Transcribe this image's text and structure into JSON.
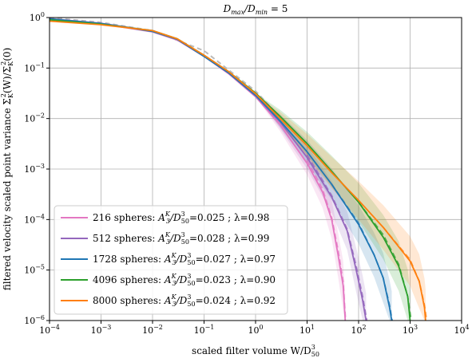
{
  "chart_data": {
    "type": "line",
    "title": {
      "base": "D",
      "sub1": "max",
      "mid": "/D",
      "sub2": "min",
      "tail": " = 5"
    },
    "xlabel": {
      "base": "scaled filter volume W/D",
      "sup": "3",
      "sub": "50"
    },
    "ylabel": {
      "pre": "filtered velocity scaled point variance Σ",
      "sub": "K",
      "sup": "2",
      "mid": "(W)/Σ",
      "sub2": "K",
      "sup2": "2",
      "tail": "(0)"
    },
    "x_scale": "log",
    "y_scale": "log",
    "xlim": [
      0.0001,
      10000
    ],
    "ylim": [
      1e-06,
      1
    ],
    "x_ticks": [
      {
        "value": 0.0001,
        "base": "10",
        "exp": "−4"
      },
      {
        "value": 0.001,
        "base": "10",
        "exp": "−3"
      },
      {
        "value": 0.01,
        "base": "10",
        "exp": "−2"
      },
      {
        "value": 0.1,
        "base": "10",
        "exp": "−1"
      },
      {
        "value": 1,
        "base": "10",
        "exp": "0"
      },
      {
        "value": 10,
        "base": "10",
        "exp": "1"
      },
      {
        "value": 100,
        "base": "10",
        "exp": "2"
      },
      {
        "value": 1000,
        "base": "10",
        "exp": "3"
      },
      {
        "value": 10000,
        "base": "10",
        "exp": "4"
      }
    ],
    "y_ticks": [
      {
        "value": 1e-06,
        "base": "10",
        "exp": "−6"
      },
      {
        "value": 1e-05,
        "base": "10",
        "exp": "−5"
      },
      {
        "value": 0.0001,
        "base": "10",
        "exp": "−4"
      },
      {
        "value": 0.001,
        "base": "10",
        "exp": "−3"
      },
      {
        "value": 0.01,
        "base": "10",
        "exp": "−2"
      },
      {
        "value": 0.1,
        "base": "10",
        "exp": "−1"
      },
      {
        "value": 1,
        "base": "10",
        "exp": "0"
      }
    ],
    "grid": true,
    "legend_position": "bottom-left",
    "reference_curve": {
      "color": "#bbbbbb",
      "x": [
        0.0001,
        0.001,
        0.01,
        0.1,
        1,
        10
      ],
      "y": [
        1.0,
        0.8,
        0.55,
        0.22,
        0.035,
        0.003
      ]
    },
    "series": [
      {
        "name": "216 spheres:",
        "label_tail": "=0.025 ; λ=0.98",
        "color": "#e377c2",
        "x": [
          0.0001,
          0.001,
          0.01,
          0.03,
          0.1,
          0.3,
          1,
          3,
          10,
          20,
          30,
          40,
          50,
          55
        ],
        "y": [
          0.93,
          0.75,
          0.52,
          0.36,
          0.17,
          0.077,
          0.027,
          0.0075,
          0.0013,
          0.00035,
          0.0001,
          2e-05,
          5e-06,
          1e-06
        ],
        "fit_x": [
          10,
          20,
          30,
          40,
          50,
          56
        ],
        "fit_y": [
          0.0015,
          0.0004,
          0.00011,
          2.5e-05,
          6e-06,
          1e-06
        ]
      },
      {
        "name": "512 spheres:",
        "label_tail": "=0.028 ; λ=0.99",
        "color": "#9467bd",
        "x": [
          0.0001,
          0.001,
          0.01,
          0.03,
          0.1,
          0.3,
          1,
          3,
          10,
          30,
          60,
          90,
          120,
          140
        ],
        "y": [
          0.95,
          0.77,
          0.54,
          0.37,
          0.17,
          0.08,
          0.028,
          0.0085,
          0.0017,
          0.00028,
          6e-05,
          1e-05,
          2.5e-06,
          1e-06
        ],
        "fit_x": [
          10,
          30,
          60,
          90,
          120,
          145
        ],
        "fit_y": [
          0.0019,
          0.0003,
          6.5e-05,
          1.2e-05,
          3e-06,
          1e-06
        ]
      },
      {
        "name": "1728 spheres:",
        "label_tail": "=0.027 ; λ=0.97",
        "color": "#1f77b4",
        "x": [
          0.0001,
          0.001,
          0.01,
          0.03,
          0.1,
          0.3,
          1,
          3,
          10,
          30,
          100,
          200,
          300,
          400,
          440
        ],
        "y": [
          0.94,
          0.76,
          0.53,
          0.37,
          0.17,
          0.08,
          0.029,
          0.009,
          0.0022,
          0.0005,
          8e-05,
          2e-05,
          7e-06,
          1.8e-06,
          1e-06
        ],
        "fit_x": [
          30,
          100,
          200,
          300,
          400,
          450
        ],
        "fit_y": [
          0.0005,
          8.5e-05,
          2e-05,
          7e-06,
          2e-06,
          1e-06
        ]
      },
      {
        "name": "4096 spheres:",
        "label_tail": "=0.023 ; λ=0.90",
        "color": "#2ca02c",
        "x": [
          0.0001,
          0.001,
          0.01,
          0.03,
          0.1,
          0.3,
          1,
          3,
          10,
          30,
          100,
          300,
          600,
          900,
          1000
        ],
        "y": [
          0.9,
          0.74,
          0.55,
          0.38,
          0.18,
          0.085,
          0.032,
          0.011,
          0.0032,
          0.0009,
          0.00022,
          4.5e-05,
          1.2e-05,
          3e-06,
          1e-06
        ],
        "fit_x": [
          100,
          300,
          600,
          900,
          1050
        ],
        "fit_y": [
          0.00022,
          5e-05,
          1.3e-05,
          3e-06,
          1e-06
        ]
      },
      {
        "name": "8000 spheres:",
        "label_tail": "=0.024 ; λ=0.92",
        "color": "#ff7f0e",
        "x": [
          0.0001,
          0.001,
          0.01,
          0.03,
          0.1,
          0.3,
          1,
          3,
          10,
          30,
          100,
          300,
          1000,
          1500,
          1900,
          2000
        ],
        "y": [
          0.85,
          0.72,
          0.55,
          0.38,
          0.18,
          0.085,
          0.031,
          0.01,
          0.0029,
          0.00085,
          0.00024,
          7e-05,
          1.5e-05,
          6e-06,
          1.8e-06,
          1e-06
        ],
        "fit_x": [
          300,
          1000,
          1500,
          1900,
          2100
        ],
        "fit_y": [
          7e-05,
          1.6e-05,
          6e-06,
          2e-06,
          1e-06
        ]
      }
    ],
    "legend_prefix": {
      "base": "A",
      "sup": "K",
      "sub": "3",
      "mid": "/D",
      "sup2": "3",
      "sub2": "50"
    }
  }
}
